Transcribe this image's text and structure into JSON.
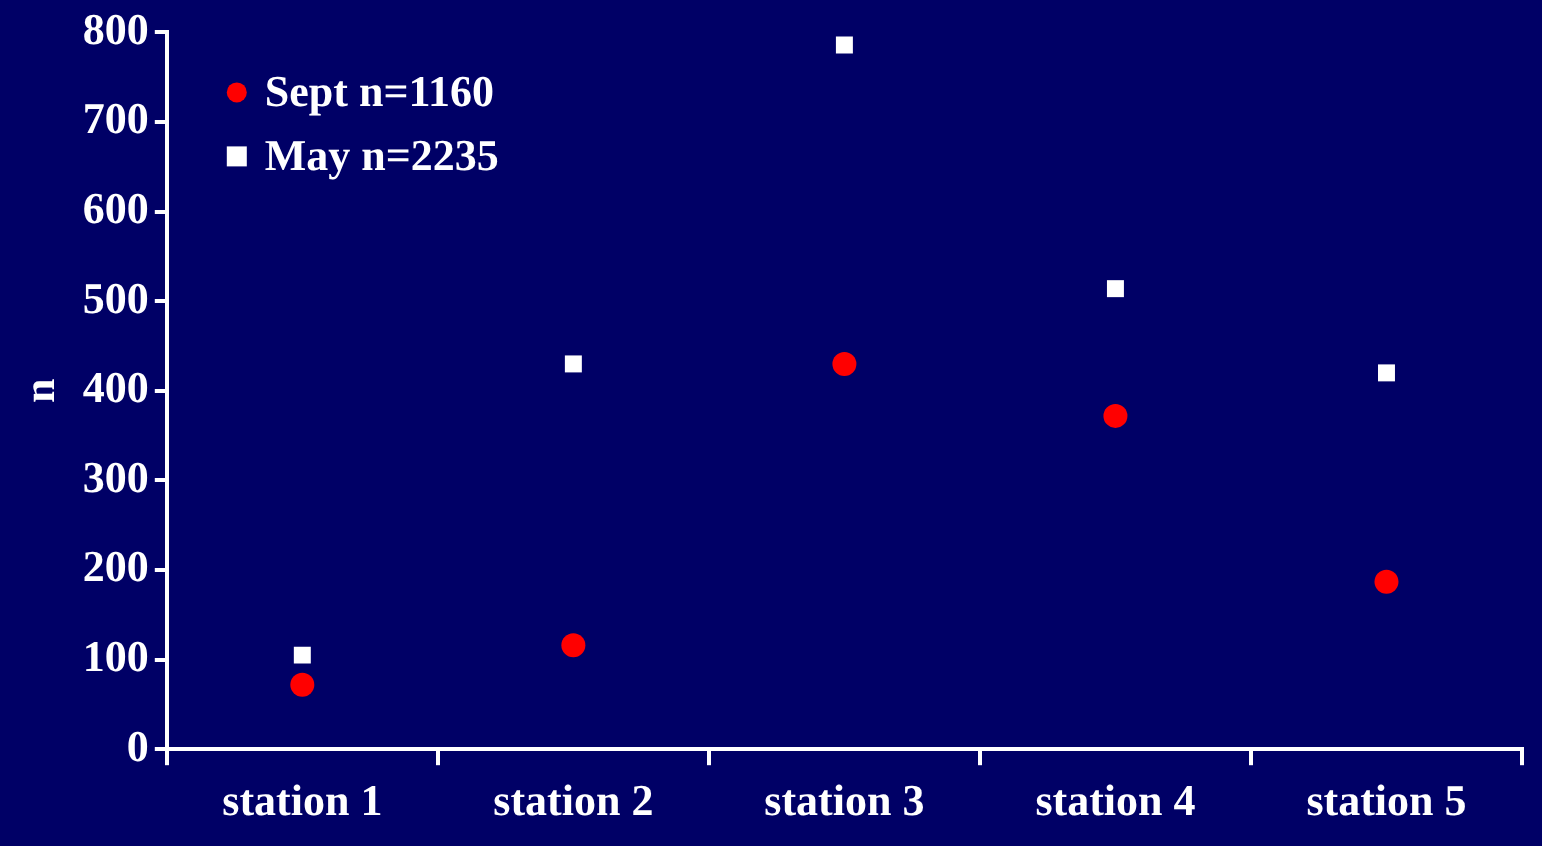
{
  "chart_data": {
    "type": "scatter",
    "ylabel": "n",
    "categories": [
      "station 1",
      "station 2",
      "station 3",
      "station 4",
      "station 5"
    ],
    "series": [
      {
        "name": "Sept n=1160",
        "color": "#ff0000",
        "marker": "circle",
        "values": [
          72,
          116,
          430,
          372,
          187
        ]
      },
      {
        "name": "May n=2235",
        "color": "#ffffff",
        "marker": "square",
        "values": [
          105,
          430,
          786,
          514,
          420
        ]
      }
    ],
    "ylim": [
      0,
      800
    ],
    "yticks": [
      0,
      100,
      200,
      300,
      400,
      500,
      600,
      700,
      800
    ],
    "grid": false,
    "legend": "top left"
  }
}
